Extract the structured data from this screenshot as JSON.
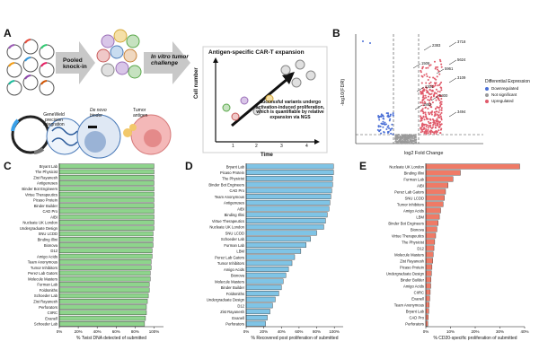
{
  "panel_a": {
    "letter": "A",
    "step1": "Pooled knock-in",
    "step2": "In vitro tumor challenge",
    "plasmid_caption": "GeneWeld precision integration",
    "binder_label": "De novo binder",
    "antigen_label": "Tumor antigen",
    "expansion_title": "Antigen-specific CAR-T expansion",
    "ylabel": "Cell number",
    "xlabel": "Time",
    "time_ticks": [
      "1",
      "2",
      "3",
      "4"
    ],
    "annotation": "Successful variants undergo activation-induced proliferation, which is quantifiable by relative expansion via NGS"
  },
  "panel_b": {
    "letter": "B",
    "ylabel": "-log10(FDR)",
    "xlabel": "log2 Fold Change",
    "legend_title": "Differential Expression",
    "legend": [
      {
        "name": "Downregulated",
        "color": "#4a6fd6"
      },
      {
        "name": "Not significant",
        "color": "#9a9a9a"
      },
      {
        "name": "Upregulated",
        "color": "#e05a6a"
      }
    ],
    "point_labels": [
      "3718",
      "2383",
      "1506",
      "5624",
      "5961",
      "3109",
      "1304",
      "5300",
      "1892",
      "3494"
    ]
  },
  "chart_data": [
    {
      "type": "bar",
      "panel": "C",
      "color": "#8ed48c",
      "xlabel": "% Twist DNA detected of submitted",
      "xticks": [
        "0%",
        "20%",
        "40%",
        "60%",
        "80%",
        "100%"
      ],
      "xlim": [
        0,
        110
      ],
      "categories": [
        "Bryant Lab",
        "The Physicist",
        "Zist Rayanesh",
        "Antigenuses",
        "Binder Bot Engineers",
        "Virtue Therapeutics",
        "Picaso Protein",
        "Binder Builder",
        "CAD Pro",
        "AIBI",
        "Nucleate UK London",
        "Undergraduate Design",
        "SNU LCDD",
        "Binding Illini",
        "Bionova",
        "D12",
        "Amigo Acids",
        "Team Anonymous",
        "Tumor Inhibitors",
        "Perez Lab Gators",
        "Molecule Masters",
        "Furman Lab",
        "Foldsmiths",
        "Schoeder Lab",
        "Zist Rayanesh",
        "Perforators",
        "CIIRC",
        "Evanell",
        "Schoeder Lab"
      ],
      "values": [
        100,
        100,
        100,
        100,
        100,
        100,
        100,
        100,
        100,
        100,
        100,
        100,
        99,
        99,
        99,
        98,
        98,
        97,
        97,
        96,
        96,
        95,
        95,
        94,
        93,
        92,
        92,
        91,
        90
      ]
    },
    {
      "type": "bar",
      "panel": "D",
      "color": "#7fc4e6",
      "xlabel": "% Recovered post proliferation of submitted",
      "xticks": [
        "0%",
        "20%",
        "40%",
        "60%",
        "80%",
        "100%"
      ],
      "xlim": [
        0,
        110
      ],
      "categories": [
        "Bryant Lab",
        "Picaso Protein",
        "The Physicist",
        "Binder Bot Engineers",
        "CAD Pro",
        "Team Anonymous",
        "Antigenuses",
        "AIBI",
        "Binding Illini",
        "Virtue Therapeutics",
        "Nucleate UK London",
        "SNU LCDD",
        "Schoeder Lab",
        "Furman Lab",
        "LBM",
        "Perez Lab Gators",
        "Tumor Inhibitors",
        "Amigo Acids",
        "Bionova",
        "Molecule Masters",
        "Binder Builder",
        "Foldsmiths",
        "Undergraduate Design",
        "D12",
        "Zist Rayanesh",
        "Evanell",
        "Perforators"
      ],
      "values": [
        99,
        99,
        98,
        98,
        97,
        96,
        95,
        94,
        92,
        90,
        88,
        80,
        73,
        68,
        62,
        55,
        52,
        48,
        45,
        42,
        40,
        37,
        33,
        30,
        27,
        24,
        22
      ]
    },
    {
      "type": "bar",
      "panel": "E",
      "color": "#ef7a66",
      "xlabel": "% CD20-specific proliferation of submitted",
      "xticks": [
        "0%",
        "10%",
        "20%",
        "30%",
        "40%"
      ],
      "xlim": [
        0,
        40
      ],
      "categories": [
        "Nucleate UK London",
        "Binding Illini",
        "Furman Lab",
        "AIBI",
        "Perez Lab Gators",
        "SNU LCDD",
        "Tumor Inhibitors",
        "Amigo Acids",
        "LBM",
        "Binder Bot Engineers",
        "Bionova",
        "Virtue Therapeutics",
        "The Physicist",
        "D12",
        "Molecule Masters",
        "Zist Rayanesh",
        "Picaso Protein",
        "Undergraduate Design",
        "Binder Builder",
        "Amigo Acids",
        "CIIRC",
        "Evanell",
        "Team Anonymous",
        "Bryant Lab",
        "CAD Pro",
        "Perforators"
      ],
      "values": [
        38,
        14,
        11,
        9,
        8,
        7.5,
        7,
        6,
        5.5,
        5,
        4.5,
        4,
        3.6,
        3.3,
        3,
        2.8,
        2.5,
        2.3,
        2.1,
        2,
        1.8,
        1.6,
        1.4,
        1.2,
        1,
        0.8
      ]
    }
  ]
}
